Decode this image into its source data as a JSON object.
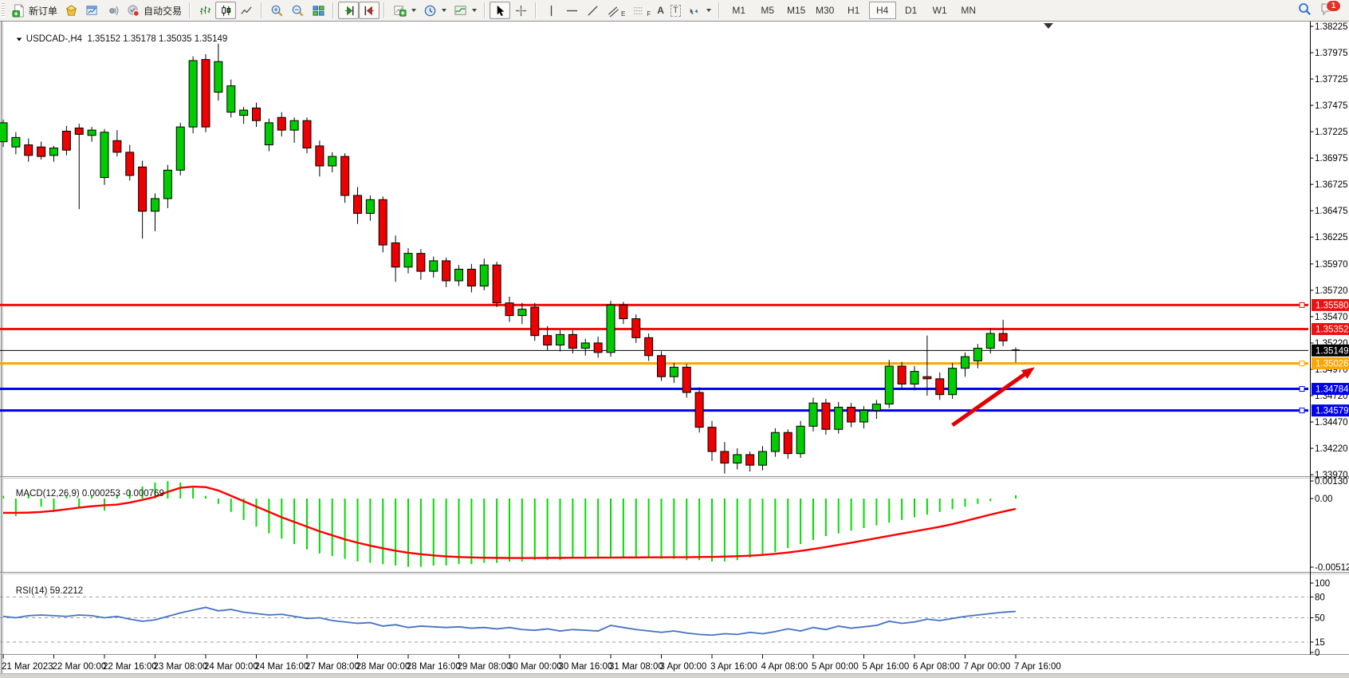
{
  "toolbar": {
    "new_order_label": "新订单",
    "auto_trading_label": "自动交易",
    "tool_letters": {
      "text": "A",
      "label": "T",
      "channel": "E",
      "fibo": "F"
    },
    "timeframes": [
      "M1",
      "M5",
      "M15",
      "M30",
      "H1",
      "H4",
      "D1",
      "W1",
      "MN"
    ],
    "active_timeframe": "H4",
    "notification_count": "1"
  },
  "chart": {
    "title_symbol": "USDCAD-,H4",
    "title_ohlc": "1.35152 1.35178 1.35035 1.35149"
  },
  "price_axis": {
    "ticks": [
      "1.38225",
      "1.37975",
      "1.37725",
      "1.37475",
      "1.37225",
      "1.36975",
      "1.36725",
      "1.36475",
      "1.36225",
      "1.35970",
      "1.35720",
      "1.35470",
      "1.35220",
      "1.34970",
      "1.34720",
      "1.34470",
      "1.34220",
      "1.33970"
    ]
  },
  "chart_data": {
    "type": "candlestick",
    "symbol": "USDCAD-",
    "timeframe": "H4",
    "ohlc_display": {
      "open": "1.35152",
      "high": "1.35178",
      "low": "1.35035",
      "close": "1.35149"
    },
    "up_color": "#00cc00",
    "down_color": "#ee0000",
    "outline_color": "#000000",
    "ylim": [
      1.3397,
      1.38225
    ],
    "x_labels": [
      "21 Mar 2023",
      "22 Mar 00:00",
      "22 Mar 16:00",
      "23 Mar 08:00",
      "24 Mar 00:00",
      "24 Mar 16:00",
      "27 Mar 08:00",
      "28 Mar 00:00",
      "28 Mar 16:00",
      "29 Mar 08:00",
      "30 Mar 00:00",
      "30 Mar 16:00",
      "31 Mar 08:00",
      "3 Apr 00:00",
      "3 Apr 16:00",
      "4 Apr 08:00",
      "5 Apr 00:00",
      "5 Apr 16:00",
      "6 Apr 08:00",
      "7 Apr 00:00",
      "7 Apr 16:00"
    ],
    "bars_per_label": 4,
    "candles": [
      [
        1.3713,
        1.3734,
        1.3708,
        1.3731
      ],
      [
        1.3708,
        1.3722,
        1.3701,
        1.3717
      ],
      [
        1.371,
        1.3716,
        1.3694,
        1.37
      ],
      [
        1.3708,
        1.3713,
        1.3696,
        1.3699
      ],
      [
        1.37,
        1.3709,
        1.3694,
        1.3707
      ],
      [
        1.3723,
        1.3728,
        1.37,
        1.3705
      ],
      [
        1.3726,
        1.373,
        1.3649,
        1.372
      ],
      [
        1.3719,
        1.3727,
        1.3713,
        1.3724
      ],
      [
        1.3679,
        1.3725,
        1.3672,
        1.3722
      ],
      [
        1.3714,
        1.3724,
        1.3699,
        1.3703
      ],
      [
        1.3703,
        1.371,
        1.3676,
        1.3681
      ],
      [
        1.3689,
        1.3695,
        1.3621,
        1.3647
      ],
      [
        1.3647,
        1.3664,
        1.3628,
        1.3659
      ],
      [
        1.3659,
        1.3691,
        1.365,
        1.3686
      ],
      [
        1.3686,
        1.3731,
        1.3681,
        1.3727
      ],
      [
        1.3727,
        1.3794,
        1.3721,
        1.379
      ],
      [
        1.3791,
        1.3796,
        1.3722,
        1.3727
      ],
      [
        1.376,
        1.3806,
        1.3752,
        1.3789
      ],
      [
        1.3741,
        1.3772,
        1.3736,
        1.3766
      ],
      [
        1.3738,
        1.3746,
        1.373,
        1.3743
      ],
      [
        1.3745,
        1.375,
        1.3727,
        1.3733
      ],
      [
        1.371,
        1.3735,
        1.3704,
        1.3731
      ],
      [
        1.3736,
        1.3741,
        1.3718,
        1.3724
      ],
      [
        1.3724,
        1.3736,
        1.3712,
        1.3733
      ],
      [
        1.3733,
        1.3736,
        1.3702,
        1.3707
      ],
      [
        1.3709,
        1.3714,
        1.368,
        1.369
      ],
      [
        1.369,
        1.3703,
        1.3684,
        1.3699
      ],
      [
        1.3699,
        1.3702,
        1.3655,
        1.3662
      ],
      [
        1.3662,
        1.367,
        1.3635,
        1.3645
      ],
      [
        1.3645,
        1.3662,
        1.3638,
        1.3658
      ],
      [
        1.3658,
        1.3661,
        1.3608,
        1.3615
      ],
      [
        1.3617,
        1.3624,
        1.358,
        1.3594
      ],
      [
        1.3594,
        1.3612,
        1.3588,
        1.3607
      ],
      [
        1.3607,
        1.3611,
        1.3582,
        1.359
      ],
      [
        1.359,
        1.3604,
        1.3584,
        1.36
      ],
      [
        1.36,
        1.3603,
        1.3575,
        1.3581
      ],
      [
        1.3581,
        1.3596,
        1.3576,
        1.3592
      ],
      [
        1.3592,
        1.3597,
        1.357,
        1.3576
      ],
      [
        1.3576,
        1.3602,
        1.3572,
        1.3596
      ],
      [
        1.3596,
        1.3599,
        1.3556,
        1.356
      ],
      [
        1.356,
        1.3566,
        1.3542,
        1.3548
      ],
      [
        1.3548,
        1.356,
        1.354,
        1.3554
      ],
      [
        1.3556,
        1.356,
        1.3524,
        1.3529
      ],
      [
        1.3529,
        1.3538,
        1.3515,
        1.352
      ],
      [
        1.352,
        1.3534,
        1.3514,
        1.353
      ],
      [
        1.353,
        1.3534,
        1.3512,
        1.3517
      ],
      [
        1.3517,
        1.3526,
        1.351,
        1.3522
      ],
      [
        1.3522,
        1.3528,
        1.3508,
        1.3513
      ],
      [
        1.3513,
        1.3562,
        1.3509,
        1.3558
      ],
      [
        1.3558,
        1.3561,
        1.354,
        1.3545
      ],
      [
        1.3545,
        1.3549,
        1.3522,
        1.3527
      ],
      [
        1.3527,
        1.3531,
        1.3505,
        1.351
      ],
      [
        1.351,
        1.3514,
        1.3486,
        1.349
      ],
      [
        1.349,
        1.3503,
        1.3484,
        1.3499
      ],
      [
        1.3499,
        1.3502,
        1.347,
        1.3475
      ],
      [
        1.3475,
        1.348,
        1.3437,
        1.3442
      ],
      [
        1.3442,
        1.3448,
        1.341,
        1.3419
      ],
      [
        1.3419,
        1.3428,
        1.3398,
        1.3408
      ],
      [
        1.3408,
        1.3422,
        1.3402,
        1.3416
      ],
      [
        1.3416,
        1.3419,
        1.34,
        1.3406
      ],
      [
        1.3406,
        1.3424,
        1.3401,
        1.3419
      ],
      [
        1.3419,
        1.3441,
        1.3414,
        1.3437
      ],
      [
        1.3437,
        1.344,
        1.3412,
        1.3417
      ],
      [
        1.3417,
        1.3448,
        1.3413,
        1.3443
      ],
      [
        1.3443,
        1.347,
        1.3438,
        1.3465
      ],
      [
        1.3465,
        1.3469,
        1.3435,
        1.344
      ],
      [
        1.344,
        1.3466,
        1.3436,
        1.3461
      ],
      [
        1.3461,
        1.3465,
        1.3442,
        1.3447
      ],
      [
        1.3447,
        1.3462,
        1.3441,
        1.3458
      ],
      [
        1.3458,
        1.3468,
        1.345,
        1.3464
      ],
      [
        1.3464,
        1.3506,
        1.346,
        1.35
      ],
      [
        1.35,
        1.3504,
        1.3478,
        1.3483
      ],
      [
        1.3483,
        1.35,
        1.3477,
        1.3495
      ],
      [
        1.349,
        1.3529,
        1.3472,
        1.3488
      ],
      [
        1.3488,
        1.3494,
        1.3468,
        1.3473
      ],
      [
        1.3473,
        1.3503,
        1.3469,
        1.3498
      ],
      [
        1.3498,
        1.3513,
        1.349,
        1.3509
      ],
      [
        1.3505,
        1.3521,
        1.3498,
        1.3517
      ],
      [
        1.3517,
        1.3536,
        1.3512,
        1.3531
      ],
      [
        1.3531,
        1.3544,
        1.3519,
        1.3524
      ],
      [
        1.35152,
        1.35178,
        1.35035,
        1.35149
      ]
    ],
    "hlines": [
      {
        "price": "1.35580",
        "value": 1.3558,
        "color": "#ee1111",
        "width": 3,
        "end_marker": true,
        "label_text_color": "#ffffff"
      },
      {
        "price": "1.35352",
        "value": 1.35352,
        "color": "#ee1111",
        "width": 3,
        "end_marker": false,
        "label_text_color": "#ffffff"
      },
      {
        "price": "1.35149",
        "value": 1.35149,
        "color": "#000000",
        "width": 1,
        "end_marker": false,
        "label_text_color": "#ffffff",
        "current": true
      },
      {
        "price": "1.35026",
        "value": 1.35026,
        "color": "#ffa500",
        "width": 3,
        "end_marker": true,
        "label_text_color": "#ffffff"
      },
      {
        "price": "1.34784",
        "value": 1.34784,
        "color": "#0000ee",
        "width": 3,
        "end_marker": true,
        "label_text_color": "#ffffff"
      },
      {
        "price": "1.34579",
        "value": 1.34579,
        "color": "#0000ee",
        "width": 3,
        "end_marker": true,
        "label_text_color": "#ffffff"
      }
    ],
    "arrow": {
      "color": "#e00000",
      "from": {
        "bar": 75,
        "price": 1.3444
      },
      "to": {
        "bar": 81.5,
        "price": 1.3499
      }
    },
    "macd": {
      "label": "MACD(12,26,9)",
      "value": "0.000253",
      "signal_value": "-0.000769",
      "axis_ticks": [
        "0.001307",
        "0.00",
        "-0.005123"
      ],
      "histogram_color": "#00dd00",
      "signal_color": "#ff0000",
      "histogram": [
        0.0002,
        -0.0013,
        0.0003,
        -0.0006,
        -0.001,
        0.0002,
        -0.0007,
        0.0002,
        -0.0009,
        0.0003,
        0.0006,
        0.0009,
        0.0012,
        0.0013,
        0.0012,
        0.0008,
        0.0002,
        -0.0004,
        -0.001,
        -0.0016,
        -0.0021,
        -0.0026,
        -0.003,
        -0.0034,
        -0.0038,
        -0.0041,
        -0.0043,
        -0.0045,
        -0.0047,
        -0.0048,
        -0.0049,
        -0.005,
        -0.0051,
        -0.0051,
        -0.005,
        -0.005,
        -0.0049,
        -0.0049,
        -0.0048,
        -0.0048,
        -0.0047,
        -0.0047,
        -0.0046,
        -0.0046,
        -0.0046,
        -0.0045,
        -0.0045,
        -0.0045,
        -0.0044,
        -0.0044,
        -0.0044,
        -0.0044,
        -0.0045,
        -0.0045,
        -0.0046,
        -0.0046,
        -0.0047,
        -0.0047,
        -0.0046,
        -0.0044,
        -0.0042,
        -0.004,
        -0.0037,
        -0.0034,
        -0.0031,
        -0.0028,
        -0.0026,
        -0.0024,
        -0.0022,
        -0.002,
        -0.0018,
        -0.0016,
        -0.0014,
        -0.0012,
        -0.001,
        -0.0008,
        -0.0006,
        -0.0004,
        -0.0002,
        0.0,
        0.00025
      ],
      "signal_line": [
        -0.00107,
        -0.00107,
        -0.00105,
        -0.001,
        -0.00092,
        -0.0008,
        -0.00068,
        -0.00058,
        -0.0005,
        -0.00045,
        -0.0003,
        -0.0001,
        0.00012,
        0.0005,
        0.0008,
        0.00089,
        0.00085,
        0.0006,
        0.0002,
        -0.0002,
        -0.0006,
        -0.001,
        -0.0014,
        -0.00175,
        -0.0021,
        -0.00245,
        -0.00275,
        -0.00305,
        -0.0033,
        -0.00352,
        -0.00372,
        -0.0039,
        -0.00405,
        -0.00416,
        -0.00425,
        -0.00432,
        -0.00437,
        -0.0044,
        -0.00442,
        -0.00443,
        -0.00444,
        -0.00444,
        -0.00444,
        -0.00443,
        -0.00443,
        -0.00442,
        -0.00442,
        -0.00441,
        -0.00441,
        -0.0044,
        -0.0044,
        -0.00439,
        -0.00439,
        -0.00438,
        -0.00438,
        -0.00437,
        -0.00436,
        -0.00434,
        -0.00431,
        -0.00427,
        -0.00421,
        -0.00413,
        -0.00403,
        -0.00391,
        -0.00377,
        -0.00362,
        -0.00346,
        -0.0033,
        -0.00313,
        -0.00296,
        -0.00279,
        -0.00262,
        -0.00245,
        -0.00228,
        -0.00211,
        -0.00191,
        -0.00168,
        -0.00144,
        -0.0012,
        -0.00098,
        -0.00077
      ]
    },
    "rsi": {
      "label": "RSI(14)",
      "value": "59.2212",
      "color": "#4472c4",
      "axis_ticks": [
        "100",
        "80",
        "50",
        "15",
        "0"
      ],
      "levels": [
        80,
        50,
        15
      ],
      "series": [
        52,
        50,
        53,
        54,
        53,
        52,
        54,
        53,
        50,
        52,
        48,
        45,
        47,
        52,
        57,
        61,
        65,
        60,
        62,
        58,
        56,
        54,
        55,
        52,
        49,
        50,
        46,
        44,
        42,
        43,
        38,
        40,
        36,
        38,
        37,
        36,
        37,
        35,
        36,
        34,
        36,
        33,
        32,
        34,
        31,
        33,
        32,
        31,
        39,
        36,
        33,
        31,
        29,
        31,
        28,
        26,
        25,
        27,
        26,
        29,
        27,
        30,
        34,
        31,
        36,
        33,
        38,
        35,
        37,
        39,
        45,
        42,
        44,
        48,
        46,
        49,
        52,
        54,
        56,
        58,
        59.22
      ]
    }
  }
}
